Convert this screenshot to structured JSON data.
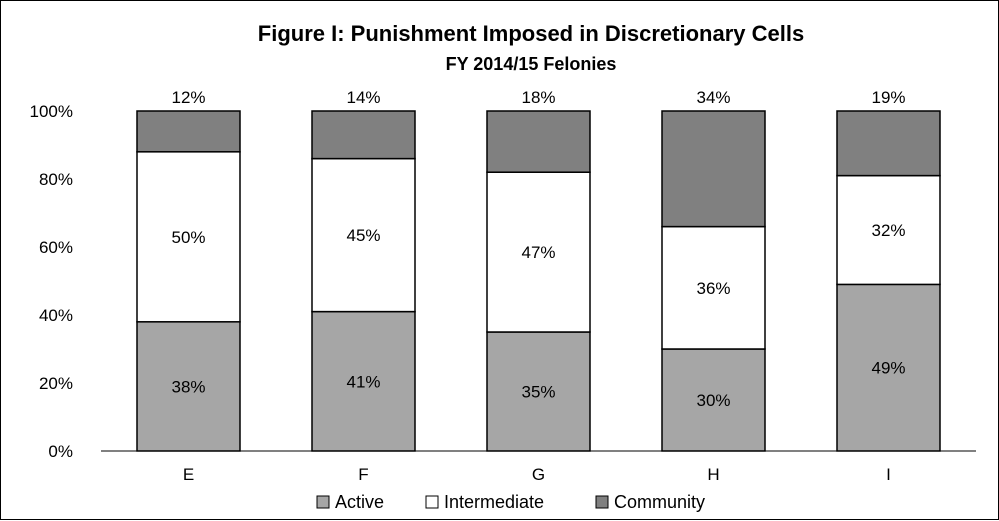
{
  "chart_data": {
    "type": "bar",
    "stacked": true,
    "title": "Figure I: Punishment Imposed in Discretionary Cells",
    "subtitle": "FY 2014/15 Felonies",
    "categories": [
      "E",
      "F",
      "G",
      "H",
      "I"
    ],
    "series": [
      {
        "name": "Active",
        "values": [
          38,
          41,
          35,
          30,
          49
        ],
        "color": "#a6a6a6"
      },
      {
        "name": "Intermediate",
        "values": [
          50,
          45,
          47,
          36,
          32
        ],
        "color": "#ffffff"
      },
      {
        "name": "Community",
        "values": [
          12,
          14,
          18,
          34,
          19
        ],
        "color": "#808080"
      }
    ],
    "data_labels": {
      "Active": [
        "38%",
        "41%",
        "35%",
        "30%",
        "49%"
      ],
      "Intermediate": [
        "50%",
        "45%",
        "47%",
        "36%",
        "32%"
      ],
      "Community": [
        "12%",
        "14%",
        "18%",
        "34%",
        "19%"
      ]
    },
    "y_ticks": [
      "0%",
      "20%",
      "40%",
      "60%",
      "80%",
      "100%"
    ],
    "ylim": [
      0,
      100
    ],
    "xlabel": "",
    "ylabel": "",
    "grid": false,
    "legend": {
      "position": "bottom"
    }
  }
}
